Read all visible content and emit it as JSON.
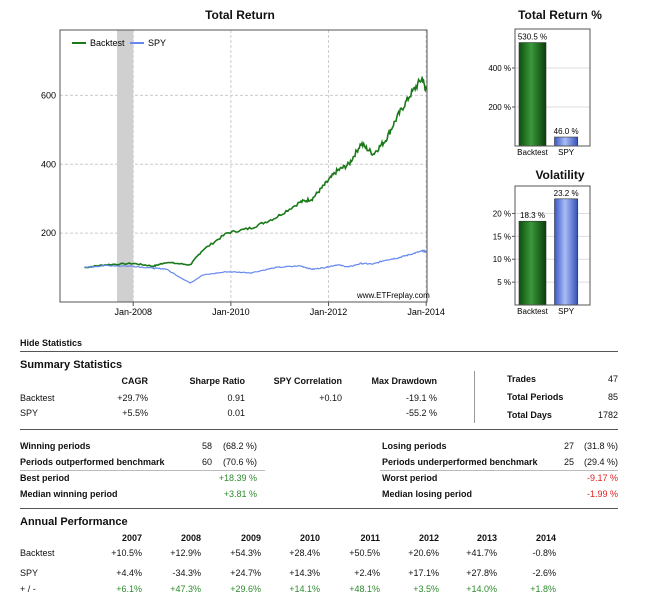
{
  "main_chart": {
    "title": "Total Return",
    "legend": [
      {
        "name": "Backtest",
        "color": "#1a7a1a"
      },
      {
        "name": "SPY",
        "color": "#6688ee"
      }
    ],
    "y_ticks": [
      "200",
      "400",
      "600"
    ],
    "x_ticks": [
      "Jan-2008",
      "Jan-2010",
      "Jan-2012",
      "Jan-2014"
    ],
    "watermark": "www.ETFreplay.com"
  },
  "chart_data": [
    {
      "type": "line",
      "title": "Total Return",
      "xlabel": "",
      "ylabel": "",
      "ylim": [
        0,
        790
      ],
      "grid": true,
      "legend_position": "top-left",
      "shaded_period": [
        "2007-09",
        "2008-01"
      ],
      "series": [
        {
          "name": "Backtest",
          "color": "#1a7a1a",
          "x": [
            "2007-01",
            "2007-06",
            "2008-01",
            "2008-06",
            "2008-09",
            "2009-03",
            "2009-06",
            "2009-12",
            "2010-06",
            "2010-12",
            "2011-06",
            "2011-09",
            "2011-12",
            "2012-03",
            "2012-06",
            "2012-09",
            "2012-12",
            "2013-03",
            "2013-06",
            "2013-09",
            "2013-12",
            "2014-01"
          ],
          "values": [
            100,
            108,
            112,
            104,
            115,
            108,
            150,
            200,
            215,
            245,
            290,
            300,
            340,
            380,
            400,
            460,
            430,
            470,
            540,
            600,
            650,
            615
          ]
        },
        {
          "name": "SPY",
          "color": "#6688ee",
          "x": [
            "2007-01",
            "2007-06",
            "2008-01",
            "2008-06",
            "2008-09",
            "2009-03",
            "2009-06",
            "2009-12",
            "2010-06",
            "2010-12",
            "2011-06",
            "2011-09",
            "2011-12",
            "2012-03",
            "2012-06",
            "2012-09",
            "2012-12",
            "2013-03",
            "2013-06",
            "2013-09",
            "2013-12",
            "2014-01"
          ],
          "values": [
            100,
            106,
            104,
            98,
            96,
            55,
            78,
            88,
            85,
            100,
            105,
            95,
            100,
            108,
            102,
            112,
            110,
            122,
            128,
            138,
            148,
            146
          ]
        }
      ]
    },
    {
      "type": "bar",
      "title": "Total Return %",
      "categories": [
        "Backtest",
        "SPY"
      ],
      "values": [
        530.5,
        46.0
      ],
      "value_labels": [
        "530.5 %",
        "46.0 %"
      ],
      "y_ticks": [
        "200 %",
        "400 %"
      ],
      "ylim": [
        0,
        600
      ]
    },
    {
      "type": "bar",
      "title": "Volatility",
      "categories": [
        "Backtest",
        "SPY"
      ],
      "values": [
        18.3,
        23.2
      ],
      "value_labels": [
        "18.3 %",
        "23.2 %"
      ],
      "y_ticks": [
        "5 %",
        "10 %",
        "15 %",
        "20 %"
      ],
      "ylim": [
        0,
        26
      ]
    }
  ],
  "hide_statistics": "Hide Statistics",
  "summary": {
    "title": "Summary Statistics",
    "headers": [
      "CAGR",
      "Sharpe Ratio",
      "SPY Correlation",
      "Max Drawdown"
    ],
    "rows": [
      {
        "label": "Backtest",
        "cagr": "+29.7%",
        "sharpe": "0.91",
        "corr": "+0.10",
        "dd": "-19.1 %"
      },
      {
        "label": "SPY",
        "cagr": "+5.5%",
        "sharpe": "0.01",
        "corr": "",
        "dd": "-55.2 %"
      }
    ],
    "side": [
      {
        "label": "Trades",
        "value": "47"
      },
      {
        "label": "Total Periods",
        "value": "85"
      },
      {
        "label": "Total Days",
        "value": "1782"
      }
    ]
  },
  "periods": {
    "left": [
      {
        "label": "Winning periods",
        "count": "58",
        "value": "(68.2 %)"
      },
      {
        "label": "Periods outperformed benchmark",
        "count": "60",
        "value": "(70.6 %)"
      },
      {
        "label": "Best period",
        "count": "",
        "value": "+18.39 %"
      },
      {
        "label": "Median winning period",
        "count": "",
        "value": "+3.81 %"
      }
    ],
    "right": [
      {
        "label": "Losing periods",
        "count": "27",
        "value": "(31.8 %)"
      },
      {
        "label": "Periods underperformed benchmark",
        "count": "25",
        "value": "(29.4 %)"
      },
      {
        "label": "Worst period",
        "count": "",
        "value": "-9.17 %"
      },
      {
        "label": "Median losing period",
        "count": "",
        "value": "-1.99 %"
      }
    ]
  },
  "annual": {
    "title": "Annual Performance",
    "years": [
      "2007",
      "2008",
      "2009",
      "2010",
      "2011",
      "2012",
      "2013",
      "2014"
    ],
    "rows": [
      {
        "label": "Backtest",
        "values": [
          "+10.5%",
          "+12.9%",
          "+54.3%",
          "+28.4%",
          "+50.5%",
          "+20.6%",
          "+41.7%",
          "-0.8%"
        ]
      },
      {
        "label": "SPY",
        "values": [
          "+4.4%",
          "-34.3%",
          "+24.7%",
          "+14.3%",
          "+2.4%",
          "+17.1%",
          "+27.8%",
          "-2.6%"
        ]
      },
      {
        "label": "+ / -",
        "values": [
          "+6.1%",
          "+47.3%",
          "+29.6%",
          "+14.1%",
          "+48.1%",
          "+3.5%",
          "+14.0%",
          "+1.8%"
        ]
      }
    ]
  },
  "colors": {
    "green": "#2e8b2e",
    "red": "#e02020",
    "bar_green": "#1f7a1f",
    "bar_blue": "#6688ee"
  }
}
